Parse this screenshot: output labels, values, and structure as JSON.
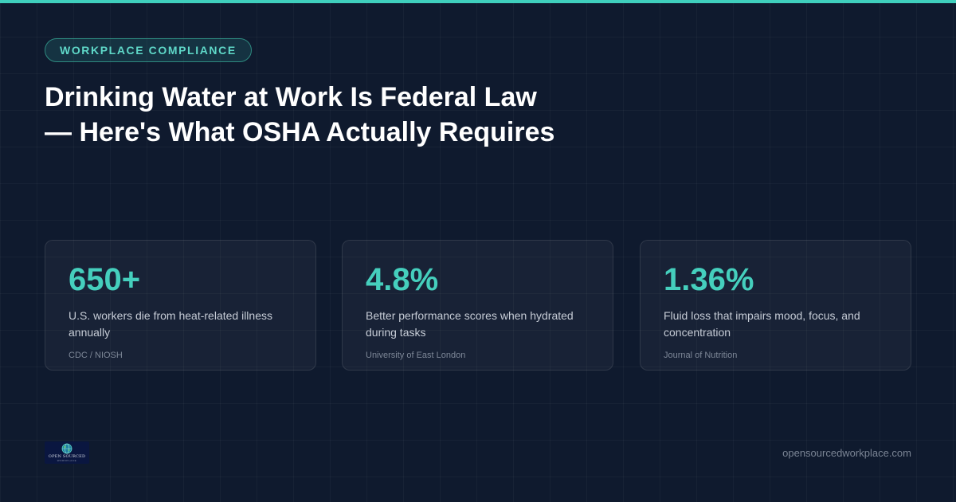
{
  "tag": "WORKPLACE COMPLIANCE",
  "headline": {
    "line1": "Drinking Water at Work Is Federal Law",
    "line2": "— Here's What OSHA Actually Requires"
  },
  "stats": [
    {
      "value": "650+",
      "description": "U.S. workers die from heat-related illness annually",
      "source": "CDC / NIOSH"
    },
    {
      "value": "4.8%",
      "description": "Better performance scores when hydrated during tasks",
      "source": "University of East London"
    },
    {
      "value": "1.36%",
      "description": "Fluid loss that impairs mood, focus, and concentration",
      "source": "Journal of Nutrition"
    }
  ],
  "logo": {
    "text": "OPEN SOURCED",
    "subtext": "WORKPLACE",
    "icon": "globe-icon"
  },
  "site_url": "opensourcedworkplace.com",
  "colors": {
    "background": "#0f1a2e",
    "accent": "#3fcfbd",
    "stat_value": "#45cfbd",
    "headline": "#ffffff"
  }
}
